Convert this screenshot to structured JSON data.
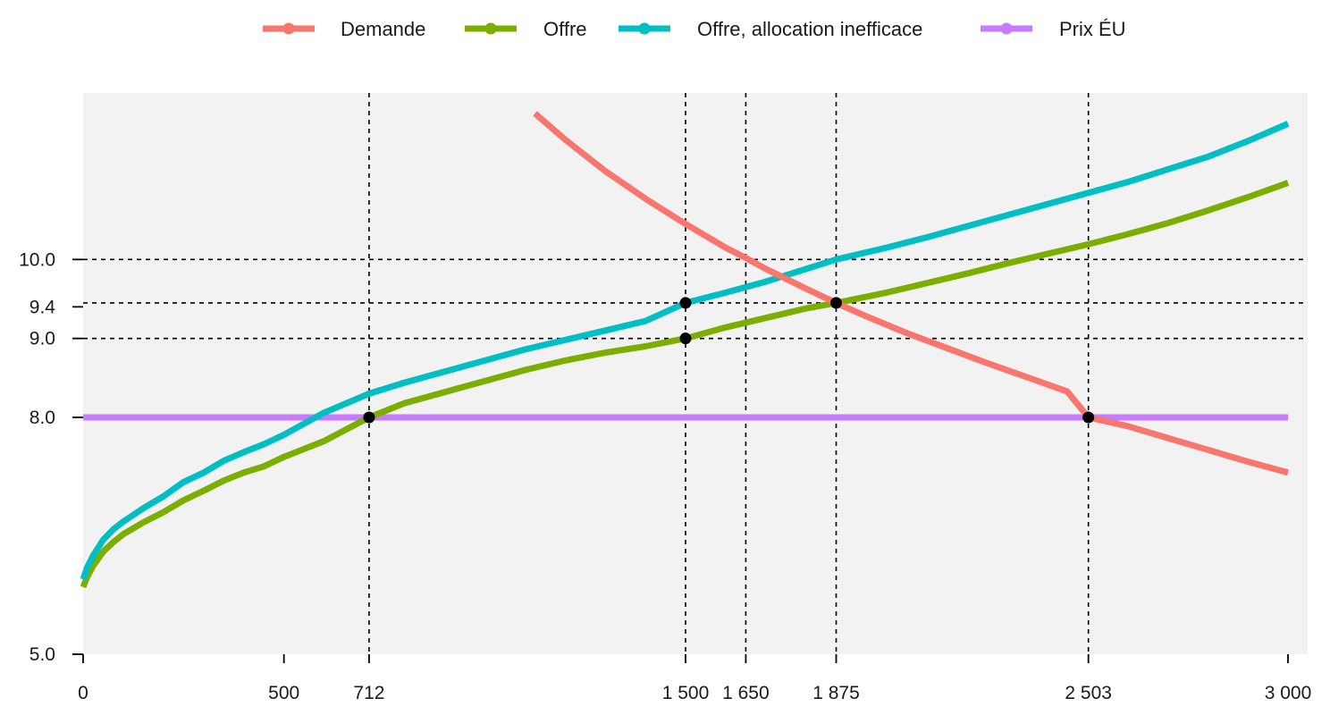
{
  "chart_data": {
    "type": "line",
    "title": "",
    "xlabel": "",
    "ylabel": "",
    "xlim": [
      0,
      3030
    ],
    "ylim": [
      5.0,
      12.08
    ],
    "grid": false,
    "legend_position": "top-center",
    "legend": [
      {
        "key": "demand",
        "label": "Demande",
        "color": "#F8766D"
      },
      {
        "key": "supply",
        "label": "Offre",
        "color": "#7CAE00"
      },
      {
        "key": "supply_inefficient",
        "label": "Offre, allocation inefficace",
        "color": "#00BFC4"
      },
      {
        "key": "world_price",
        "label": "Prix ÉU",
        "color": "#C77CFF"
      }
    ],
    "x_ticks": [
      {
        "value": 0,
        "label": "0"
      },
      {
        "value": 500,
        "label": "500"
      },
      {
        "value": 712,
        "label": "712"
      },
      {
        "value": 1500,
        "label": "1 500"
      },
      {
        "value": 1650,
        "label": "1 650"
      },
      {
        "value": 1875,
        "label": "1 875"
      },
      {
        "value": 2503,
        "label": "2 503"
      },
      {
        "value": 3000,
        "label": "3 000"
      }
    ],
    "y_ticks": [
      {
        "value": 5.0,
        "label": "5.0"
      },
      {
        "value": 8.0,
        "label": "8.0"
      },
      {
        "value": 9.0,
        "label": "9.0"
      },
      {
        "value": 9.4,
        "label": "9.4"
      },
      {
        "value": 10.0,
        "label": "10.0"
      }
    ],
    "reference_lines": {
      "vertical": [
        712,
        1500,
        1650,
        1875,
        2503
      ],
      "horizontal": [
        9.0,
        9.45,
        10.0
      ]
    },
    "series": [
      {
        "key": "demand",
        "x": [
          1125,
          1200,
          1300,
          1400,
          1500,
          1600,
          1650,
          1700,
          1800,
          1875,
          1950,
          2050,
          2150,
          2250,
          2350,
          2450,
          2503,
          2600,
          2700,
          2800,
          2900,
          3000
        ],
        "y": [
          11.85,
          11.52,
          11.12,
          10.77,
          10.45,
          10.15,
          10.02,
          9.88,
          9.63,
          9.45,
          9.28,
          9.07,
          8.88,
          8.69,
          8.51,
          8.33,
          8.0,
          7.89,
          7.74,
          7.59,
          7.44,
          7.3
        ]
      },
      {
        "key": "supply",
        "x": [
          0,
          10,
          25,
          50,
          75,
          100,
          150,
          200,
          250,
          300,
          350,
          400,
          450,
          500,
          600,
          712,
          800,
          900,
          1000,
          1100,
          1200,
          1300,
          1400,
          1500,
          1600,
          1700,
          1800,
          1875,
          2000,
          2100,
          2200,
          2300,
          2400,
          2500,
          2600,
          2700,
          2800,
          2900,
          3000
        ],
        "y": [
          5.85,
          5.98,
          6.12,
          6.3,
          6.42,
          6.52,
          6.67,
          6.8,
          6.95,
          7.07,
          7.2,
          7.3,
          7.38,
          7.5,
          7.7,
          8.0,
          8.18,
          8.32,
          8.46,
          8.6,
          8.72,
          8.82,
          8.9,
          9.0,
          9.14,
          9.26,
          9.38,
          9.45,
          9.58,
          9.7,
          9.82,
          9.95,
          10.07,
          10.19,
          10.32,
          10.46,
          10.62,
          10.79,
          10.97
        ]
      },
      {
        "key": "supply_inefficient",
        "x": [
          0,
          10,
          25,
          50,
          75,
          100,
          150,
          200,
          250,
          300,
          350,
          400,
          450,
          500,
          600,
          712,
          800,
          900,
          1000,
          1100,
          1200,
          1300,
          1400,
          1500,
          1600,
          1700,
          1800,
          1875,
          2000,
          2100,
          2200,
          2300,
          2400,
          2500,
          2600,
          2700,
          2800,
          2900,
          3000
        ],
        "y": [
          5.95,
          6.1,
          6.25,
          6.45,
          6.58,
          6.68,
          6.85,
          7.0,
          7.18,
          7.3,
          7.45,
          7.56,
          7.66,
          7.78,
          8.06,
          8.3,
          8.44,
          8.58,
          8.72,
          8.86,
          8.98,
          9.1,
          9.22,
          9.45,
          9.58,
          9.72,
          9.88,
          10.0,
          10.15,
          10.28,
          10.42,
          10.56,
          10.7,
          10.84,
          10.98,
          11.14,
          11.3,
          11.5,
          11.72
        ]
      },
      {
        "key": "world_price",
        "x": [
          0,
          3000
        ],
        "y": [
          8.0,
          8.0
        ]
      }
    ],
    "highlight_points": [
      {
        "x": 712,
        "y": 8.0
      },
      {
        "x": 1500,
        "y": 9.0
      },
      {
        "x": 1500,
        "y": 9.45
      },
      {
        "x": 1875,
        "y": 9.45
      },
      {
        "x": 2503,
        "y": 8.0
      }
    ]
  }
}
